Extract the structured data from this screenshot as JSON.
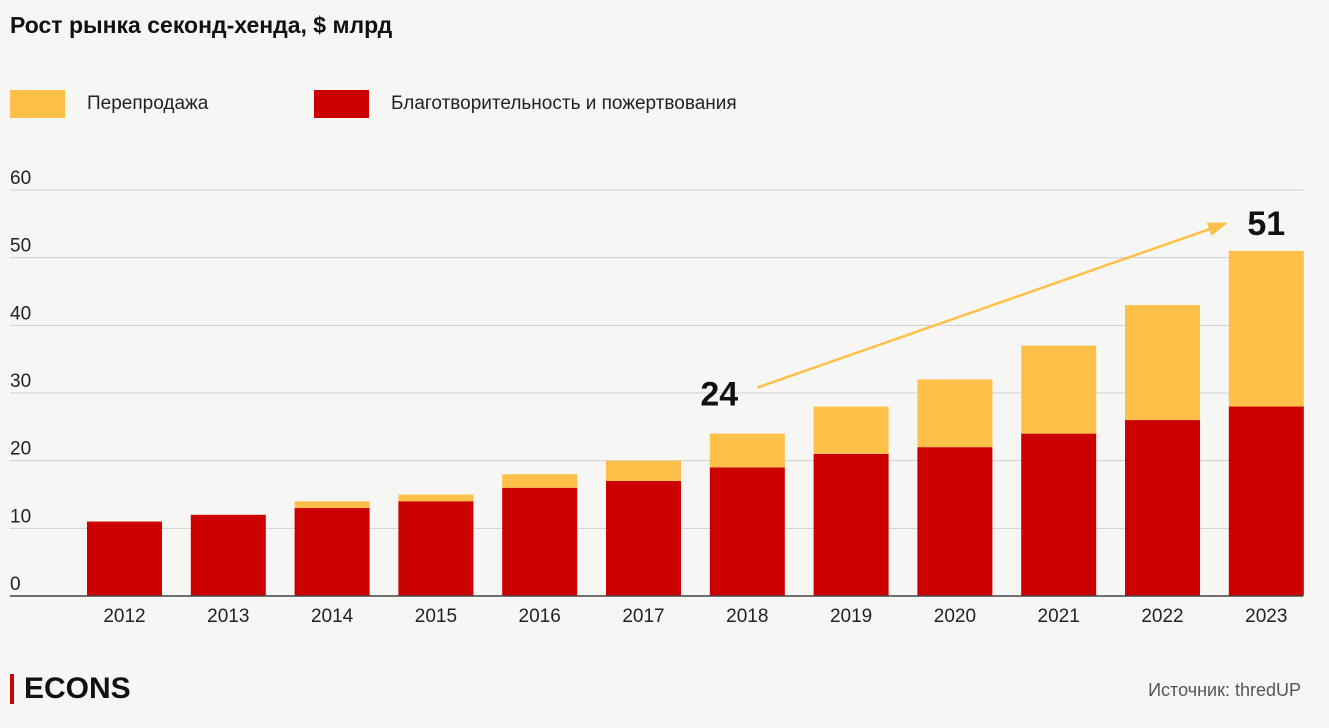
{
  "chart_data": {
    "type": "bar",
    "stacked": true,
    "title": "Рост рынка секонд-хенда, $ млрд",
    "categories": [
      "2012",
      "2013",
      "2014",
      "2015",
      "2016",
      "2017",
      "2018",
      "2019",
      "2020",
      "2021",
      "2022",
      "2023"
    ],
    "series": [
      {
        "name": "Благотворительность и пожертвования",
        "color": "#cc0000",
        "values": [
          11,
          12,
          13,
          14,
          16,
          17,
          19,
          21,
          22,
          24,
          26,
          28
        ]
      },
      {
        "name": "Перепродажа",
        "color": "#ffc04a",
        "values": [
          0,
          0,
          1,
          1,
          2,
          3,
          5,
          7,
          10,
          13,
          17,
          23
        ]
      }
    ],
    "ylim": [
      0,
      60
    ],
    "yticks": [
      "0",
      "10",
      "20",
      "30",
      "40",
      "50",
      "60"
    ],
    "grid": true,
    "legend_position": "top-left",
    "annotations": [
      {
        "text": "24",
        "category": "2018",
        "value": 24
      },
      {
        "text": "51",
        "category": "2023",
        "value": 51
      }
    ],
    "arrow_color": "#ffc04a"
  },
  "footer": {
    "logo": "ECONS",
    "source": "Источник: thredUP"
  }
}
